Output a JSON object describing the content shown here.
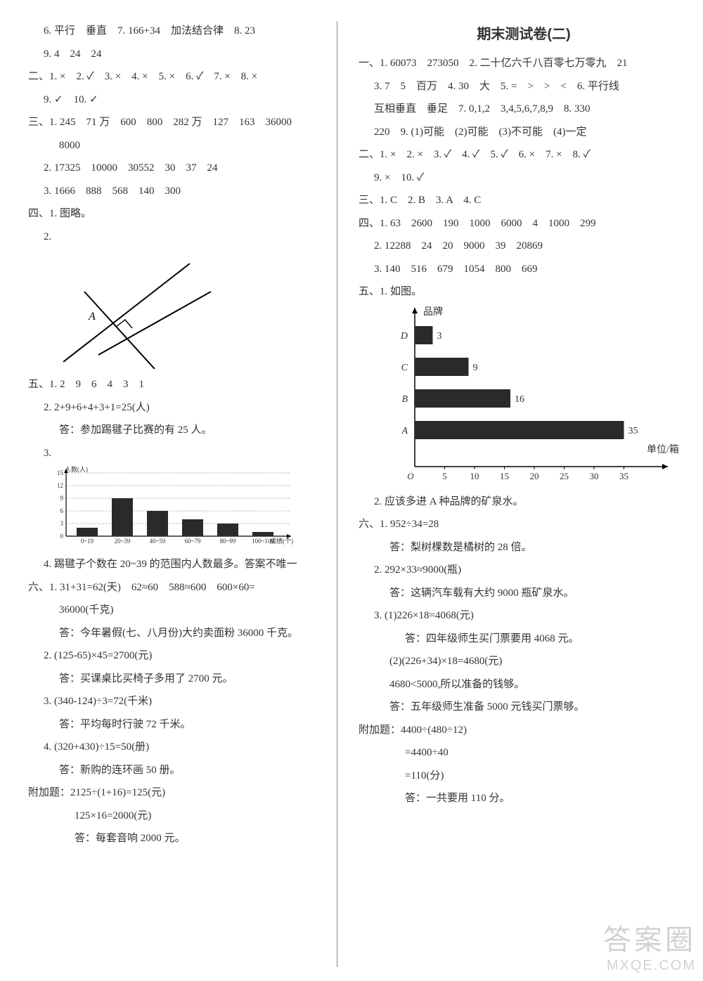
{
  "left": {
    "p6": "6. 平行　垂直　7. 166+34　加法结合律　8. 23",
    "p9": "9. 4　24　24",
    "sec2": "二、1. ×　2. ✓　3. ×　4. ×　5. ×　6. ✓　7. ×　8. ×",
    "sec2b": "9. ✓　10. ✓",
    "sec3a": "三、1. 245　71 万　600　800　282 万　127　163　36000",
    "sec3a2": "8000",
    "sec3b": "2. 17325　10000　30552　30　37　24",
    "sec3c": "3. 1666　888　568　140　300",
    "sec4_1": "四、1. 图略。",
    "sec4_2": "2.",
    "geom_label": "A",
    "sec5_1": "五、1. 2　9　6　4　3　1",
    "sec5_2": "2. 2+9+6+4+3+1=25(人)",
    "sec5_2ans": "答：参加踢毽子比赛的有 25 人。",
    "sec5_3": "3.",
    "bar_chart_left": {
      "type": "bar",
      "y_label": "人数(人)",
      "x_label": "成绩(个)",
      "y_ticks": [
        0,
        3,
        6,
        9,
        12,
        15
      ],
      "categories": [
        "0~19",
        "20~39",
        "40~59",
        "60~79",
        "80~99",
        "100~109"
      ],
      "values": [
        2,
        9,
        6,
        4,
        3,
        1
      ],
      "bar_color": "#2a2a2a",
      "grid_dash": "2,2",
      "axis_fontsize": 9
    },
    "sec5_4": "4. 踢毽子个数在 20~39 的范围内人数最多。答案不唯一",
    "sec6_1": "六、1. 31+31=62(天)　62≈60　588≈600　600×60=",
    "sec6_1b": "36000(千克)",
    "sec6_1ans": "答：今年暑假(七、八月份)大约卖面粉 36000 千克。",
    "sec6_2": "2. (125-65)×45=2700(元)",
    "sec6_2ans": "答：买课桌比买椅子多用了 2700 元。",
    "sec6_3": "3. (340-124)÷3=72(千米)",
    "sec6_3ans": "答：平均每时行驶 72 千米。",
    "sec6_4": "4. (320+430)÷15=50(册)",
    "sec6_4ans": "答：新购的连环画 50 册。",
    "extra": "附加题：2125÷(1+16)=125(元)",
    "extra_b": "125×16=2000(元)",
    "extra_ans": "答：每套音响 2000 元。"
  },
  "right": {
    "title": "期末测试卷(二)",
    "s1a": "一、1. 60073　273050　2. 二十亿六千八百零七万零九　21",
    "s1b": "3. 7　5　百万　4. 30　大　5. =　>　>　<　6. 平行线",
    "s1c": "互相垂直　垂足　7. 0,1,2　3,4,5,6,7,8,9　8. 330",
    "s1d": "220　9. (1)可能　(2)可能　(3)不可能　(4)一定",
    "s2a": "二、1. ×　2. ×　3. ✓　4. ✓　5. ✓　6. ×　7. ×　8. ✓",
    "s2b": "9. ×　10. ✓",
    "s3": "三、1. C　2. B　3. A　4. C",
    "s4a": "四、1. 63　2600　190　1000　6000　4　1000　299",
    "s4b": "2. 12288　24　20　9000　39　20869",
    "s4c": "3. 140　516　679　1054　800　669",
    "s5_1": "五、1. 如图。",
    "hbar": {
      "type": "bar_horizontal",
      "y_title": "品牌",
      "x_title": "单位/箱",
      "x_ticks": [
        "5",
        "10",
        "15",
        "20",
        "25",
        "30",
        "35"
      ],
      "bars": [
        {
          "label": "D",
          "value": 3
        },
        {
          "label": "C",
          "value": 9
        },
        {
          "label": "B",
          "value": 16
        },
        {
          "label": "A",
          "value": 35
        }
      ],
      "x_max": 40,
      "origin_x": 40,
      "top_bar_y": 30,
      "bar_gap": 45,
      "bar_color": "#2a2a2a",
      "label_fontsize": 14,
      "tick_fontsize": 13
    },
    "s5_2": "2. 应该多进 A 种品牌的矿泉水。",
    "s6_1": "六、1. 952÷34=28",
    "s6_1ans": "答：梨树棵数是橘树的 28 倍。",
    "s6_2": "2. 292×33≈9000(瓶)",
    "s6_2ans": "答：这辆汽车载有大约 9000 瓶矿泉水。",
    "s6_3": "3. (1)226×18=4068(元)",
    "s6_3ans": "答：四年级师生买门票要用 4068 元。",
    "s6_3b": "(2)(226+34)×18=4680(元)",
    "s6_3bnote": "4680<5000,所以准备的钱够。",
    "s6_3bans": "答：五年级师生准备 5000 元钱买门票够。",
    "extra": "附加题：4400÷(480÷12)",
    "extra_b": "=4400÷40",
    "extra_c": "=110(分)",
    "extra_ans": "答：一共要用 110 分。"
  },
  "watermark": {
    "cn": "答案圈",
    "url": "MXQE.COM"
  }
}
